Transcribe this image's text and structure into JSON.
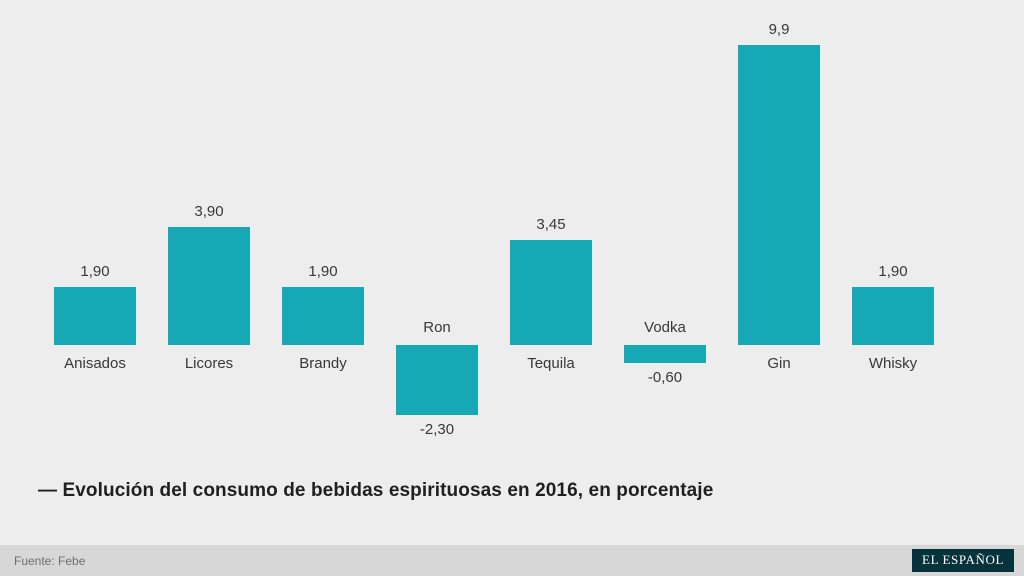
{
  "chart_data": {
    "type": "bar",
    "categories": [
      "Anisados",
      "Licores",
      "Brandy",
      "Ron",
      "Tequila",
      "Vodka",
      "Gin",
      "Whisky"
    ],
    "values": [
      1.9,
      3.9,
      1.9,
      -2.3,
      3.45,
      -0.6,
      9.9,
      1.9
    ],
    "value_labels": [
      "1,90",
      "3,90",
      "1,90",
      "-2,30",
      "3,45",
      "-0,60",
      "9,9",
      "1,90"
    ],
    "title": "— Evolución del consumo de bebidas espirituosas en 2016, en porcentaje",
    "xlabel": "",
    "ylabel": "",
    "ylim": [
      -2.6,
      10.4
    ],
    "grid": false,
    "legend": "none",
    "bar_color": "#17a8b6"
  },
  "footer": {
    "source": "Fuente: Febe",
    "brand": "EL ESPAÑOL",
    "brand_bg": "#06323c"
  }
}
